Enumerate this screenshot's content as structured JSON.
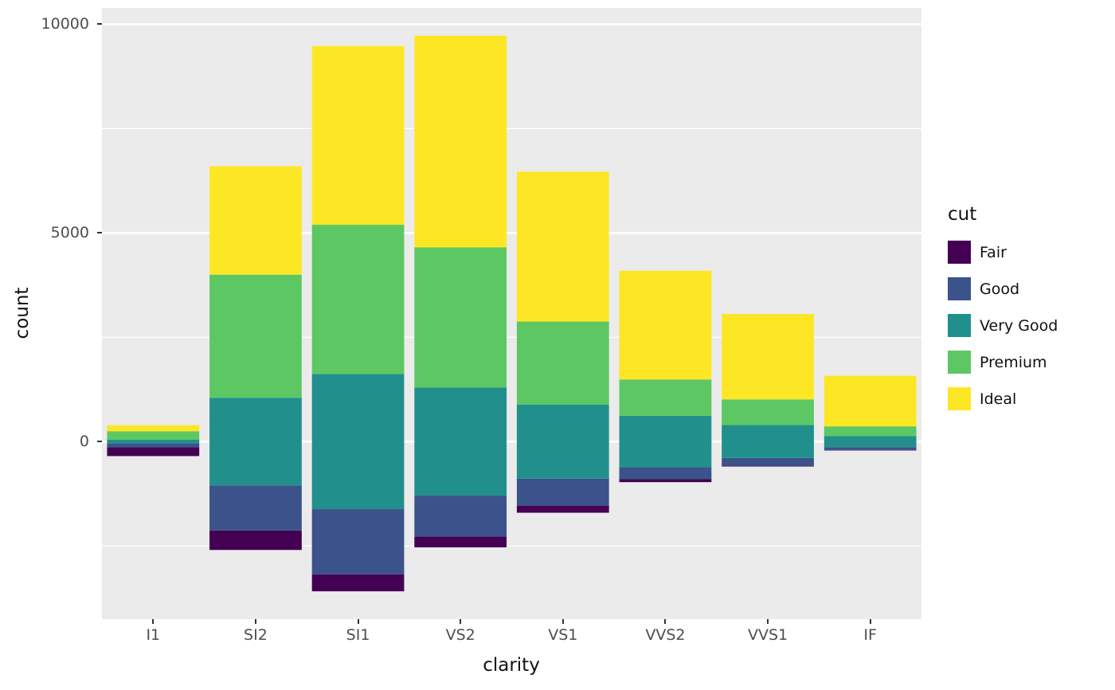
{
  "chart_data": {
    "type": "bar",
    "variant": "stacked-centered",
    "title": "",
    "xlabel": "clarity",
    "ylabel": "count",
    "legend_title": "cut",
    "legend_position": "right",
    "categories": [
      "I1",
      "SI2",
      "SI1",
      "VS2",
      "VS1",
      "VVS2",
      "VVS1",
      "IF"
    ],
    "series": [
      {
        "name": "Fair",
        "color": "#440154",
        "values": [
          210,
          466,
          408,
          261,
          170,
          69,
          17,
          9
        ]
      },
      {
        "name": "Good",
        "color": "#3B528B",
        "values": [
          96,
          1081,
          1560,
          978,
          648,
          286,
          186,
          71
        ]
      },
      {
        "name": "Very Good",
        "color": "#21908C",
        "values": [
          84,
          2100,
          3240,
          2591,
          1775,
          1235,
          789,
          268
        ]
      },
      {
        "name": "Premium",
        "color": "#5DC863",
        "values": [
          205,
          2949,
          3575,
          3357,
          1989,
          870,
          616,
          230
        ]
      },
      {
        "name": "Ideal",
        "color": "#FDE725",
        "values": [
          146,
          2598,
          4282,
          5071,
          3589,
          2606,
          2047,
          1212
        ]
      }
    ],
    "stack_alignment": "middle-series-centered-at-zero",
    "y_ticks": [
      0,
      5000,
      10000
    ],
    "y_tick_labels": [
      "0",
      "5000",
      "10000"
    ],
    "y_minor_ticks": [
      -2500,
      2500,
      7500
    ],
    "y_range_expand": 0.05,
    "bar_width_fraction": 0.9,
    "grid": true,
    "panel_bg": "#EBEBEB",
    "grid_color": "#FFFFFF",
    "tick_color": "#333333",
    "tick_label_color": "#4D4D4D",
    "axis_title_color": "#111111"
  }
}
